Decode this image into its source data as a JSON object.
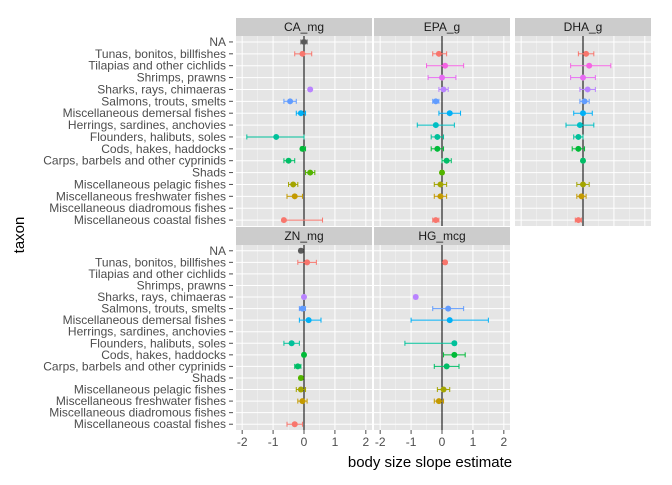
{
  "chart_data": {
    "type": "scatter",
    "subtype": "faceted point estimates with error bars",
    "xlabel": "body size slope estimate",
    "ylabel": "taxon",
    "xlim": [
      -2,
      2
    ],
    "x_ticks": [
      -2,
      -1,
      0,
      1,
      2
    ],
    "x_tick_labels": [
      "-2",
      "-1",
      "0",
      "1",
      "2"
    ],
    "reference_line_x": 0,
    "grid": true,
    "panel_background": "#e5e5e5",
    "strip_background": "#cccccc",
    "taxa": [
      {
        "name": "NA",
        "color": "#595959"
      },
      {
        "name": "Tunas, bonitos, billfishes",
        "color": "#f8766d"
      },
      {
        "name": "Tilapias and other cichlids",
        "color": "#f564e3"
      },
      {
        "name": "Shrimps, prawns",
        "color": "#e76bf3"
      },
      {
        "name": "Sharks, rays, chimaeras",
        "color": "#b983ff"
      },
      {
        "name": "Salmons, trouts, smelts",
        "color": "#619cff"
      },
      {
        "name": "Miscellaneous demersal fishes",
        "color": "#00b0f6"
      },
      {
        "name": "Herrings, sardines, anchovies",
        "color": "#00bfc4"
      },
      {
        "name": "Flounders, halibuts, soles",
        "color": "#00c19a"
      },
      {
        "name": "Cods, hakes, haddocks",
        "color": "#00ba38"
      },
      {
        "name": "Carps, barbels and other cyprinids",
        "color": "#00be67"
      },
      {
        "name": "Shads",
        "color": "#53b400"
      },
      {
        "name": "Miscellaneous pelagic fishes",
        "color": "#a3a500"
      },
      {
        "name": "Miscellaneous freshwater fishes",
        "color": "#c49a00"
      },
      {
        "name": "Miscellaneous diadromous fishes",
        "color": "#d89000"
      },
      {
        "name": "Miscellaneous coastal fishes",
        "color": "#f8766d"
      }
    ],
    "facets": [
      {
        "name": "CA_mg",
        "points": [
          {
            "taxon": "NA",
            "x": 0.0,
            "lo": -0.1,
            "hi": 0.1
          },
          {
            "taxon": "Tunas, bonitos, billfishes",
            "x": -0.05,
            "lo": -0.3,
            "hi": 0.25
          },
          {
            "taxon": "Sharks, rays, chimaeras",
            "x": 0.2,
            "lo": 0.15,
            "hi": 0.25
          },
          {
            "taxon": "Salmons, trouts, smelts",
            "x": -0.45,
            "lo": -0.65,
            "hi": -0.25
          },
          {
            "taxon": "Miscellaneous demersal fishes",
            "x": -0.1,
            "lo": -0.25,
            "hi": 0.05
          },
          {
            "taxon": "Flounders, halibuts, soles",
            "x": -0.9,
            "lo": -1.85,
            "hi": 0.0
          },
          {
            "taxon": "Cods, hakes, haddocks",
            "x": -0.05,
            "lo": -0.1,
            "hi": 0.05
          },
          {
            "taxon": "Carps, barbels and other cyprinids",
            "x": -0.5,
            "lo": -0.65,
            "hi": -0.3
          },
          {
            "taxon": "Shads",
            "x": 0.2,
            "lo": 0.05,
            "hi": 0.35
          },
          {
            "taxon": "Miscellaneous pelagic fishes",
            "x": -0.35,
            "lo": -0.5,
            "hi": -0.2
          },
          {
            "taxon": "Miscellaneous freshwater fishes",
            "x": -0.3,
            "lo": -0.55,
            "hi": -0.05
          },
          {
            "taxon": "Miscellaneous coastal fishes",
            "x": -0.65,
            "lo": -0.7,
            "hi": 0.6
          }
        ]
      },
      {
        "name": "EPA_g",
        "points": [
          {
            "taxon": "Tunas, bonitos, billfishes",
            "x": -0.1,
            "lo": -0.3,
            "hi": 0.15
          },
          {
            "taxon": "Tilapias and other cichlids",
            "x": 0.1,
            "lo": -0.5,
            "hi": 0.7
          },
          {
            "taxon": "Shrimps, prawns",
            "x": 0.0,
            "lo": -0.45,
            "hi": 0.45
          },
          {
            "taxon": "Sharks, rays, chimaeras",
            "x": 0.05,
            "lo": -0.1,
            "hi": 0.2
          },
          {
            "taxon": "Salmons, trouts, smelts",
            "x": -0.2,
            "lo": -0.3,
            "hi": -0.1
          },
          {
            "taxon": "Miscellaneous demersal fishes",
            "x": 0.25,
            "lo": -0.1,
            "hi": 0.6
          },
          {
            "taxon": "Herrings, sardines, anchovies",
            "x": -0.2,
            "lo": -0.8,
            "hi": 0.4
          },
          {
            "taxon": "Flounders, halibuts, soles",
            "x": -0.15,
            "lo": -0.35,
            "hi": 0.05
          },
          {
            "taxon": "Cods, hakes, haddocks",
            "x": -0.15,
            "lo": -0.35,
            "hi": 0.05
          },
          {
            "taxon": "Carps, barbels and other cyprinids",
            "x": 0.15,
            "lo": 0.0,
            "hi": 0.3
          },
          {
            "taxon": "Shads",
            "x": 0.0,
            "lo": -0.05,
            "hi": 0.05
          },
          {
            "taxon": "Miscellaneous pelagic fishes",
            "x": -0.05,
            "lo": -0.25,
            "hi": 0.15
          },
          {
            "taxon": "Miscellaneous freshwater fishes",
            "x": -0.05,
            "lo": -0.25,
            "hi": 0.15
          },
          {
            "taxon": "Miscellaneous coastal fishes",
            "x": -0.2,
            "lo": -0.3,
            "hi": -0.1
          }
        ]
      },
      {
        "name": "DHA_g",
        "points": [
          {
            "taxon": "Tunas, bonitos, billfishes",
            "x": 0.1,
            "lo": -0.15,
            "hi": 0.35
          },
          {
            "taxon": "Tilapias and other cichlids",
            "x": 0.2,
            "lo": -0.4,
            "hi": 0.9
          },
          {
            "taxon": "Shrimps, prawns",
            "x": 0.0,
            "lo": -0.4,
            "hi": 0.4
          },
          {
            "taxon": "Sharks, rays, chimaeras",
            "x": 0.15,
            "lo": -0.1,
            "hi": 0.4
          },
          {
            "taxon": "Salmons, trouts, smelts",
            "x": 0.05,
            "lo": -0.1,
            "hi": 0.2
          },
          {
            "taxon": "Miscellaneous demersal fishes",
            "x": 0.0,
            "lo": -0.3,
            "hi": 0.3
          },
          {
            "taxon": "Herrings, sardines, anchovies",
            "x": -0.1,
            "lo": -0.55,
            "hi": 0.35
          },
          {
            "taxon": "Flounders, halibuts, soles",
            "x": -0.15,
            "lo": -0.3,
            "hi": 0.0
          },
          {
            "taxon": "Cods, hakes, haddocks",
            "x": -0.15,
            "lo": -0.35,
            "hi": 0.05
          },
          {
            "taxon": "Carps, barbels and other cyprinids",
            "x": 0.0,
            "lo": -0.05,
            "hi": 0.05
          },
          {
            "taxon": "Miscellaneous pelagic fishes",
            "x": 0.0,
            "lo": -0.2,
            "hi": 0.2
          },
          {
            "taxon": "Miscellaneous freshwater fishes",
            "x": -0.05,
            "lo": -0.2,
            "hi": 0.1
          },
          {
            "taxon": "Miscellaneous coastal fishes",
            "x": -0.15,
            "lo": -0.25,
            "hi": -0.05
          }
        ]
      },
      {
        "name": "ZN_mg",
        "points": [
          {
            "taxon": "NA",
            "x": -0.1,
            "lo": -0.15,
            "hi": -0.05
          },
          {
            "taxon": "Tunas, bonitos, billfishes",
            "x": 0.1,
            "lo": -0.2,
            "hi": 0.4
          },
          {
            "taxon": "Sharks, rays, chimaeras",
            "x": 0.0,
            "lo": -0.05,
            "hi": 0.05
          },
          {
            "taxon": "Salmons, trouts, smelts",
            "x": -0.05,
            "lo": -0.15,
            "hi": 0.05
          },
          {
            "taxon": "Miscellaneous demersal fishes",
            "x": 0.15,
            "lo": -0.15,
            "hi": 0.55
          },
          {
            "taxon": "Flounders, halibuts, soles",
            "x": -0.4,
            "lo": -0.65,
            "hi": -0.15
          },
          {
            "taxon": "Cods, hakes, haddocks",
            "x": 0.0,
            "lo": -0.05,
            "hi": 0.05
          },
          {
            "taxon": "Carps, barbels and other cyprinids",
            "x": -0.2,
            "lo": -0.3,
            "hi": -0.1
          },
          {
            "taxon": "Shads",
            "x": -0.1,
            "lo": -0.15,
            "hi": -0.05
          },
          {
            "taxon": "Miscellaneous pelagic fishes",
            "x": -0.1,
            "lo": -0.25,
            "hi": 0.05
          },
          {
            "taxon": "Miscellaneous freshwater fishes",
            "x": -0.05,
            "lo": -0.2,
            "hi": 0.1
          },
          {
            "taxon": "Miscellaneous coastal fishes",
            "x": -0.3,
            "lo": -0.55,
            "hi": -0.05
          }
        ]
      },
      {
        "name": "HG_mcg",
        "points": [
          {
            "taxon": "Tunas, bonitos, billfishes",
            "x": 0.1,
            "lo": 0.05,
            "hi": 0.15
          },
          {
            "taxon": "Sharks, rays, chimaeras",
            "x": -0.85,
            "lo": -0.9,
            "hi": -0.8
          },
          {
            "taxon": "Salmons, trouts, smelts",
            "x": 0.2,
            "lo": -0.3,
            "hi": 0.7
          },
          {
            "taxon": "Miscellaneous demersal fishes",
            "x": 0.25,
            "lo": -1.0,
            "hi": 1.5
          },
          {
            "taxon": "Flounders, halibuts, soles",
            "x": 0.4,
            "lo": -1.2,
            "hi": 0.45
          },
          {
            "taxon": "Cods, hakes, haddocks",
            "x": 0.4,
            "lo": 0.05,
            "hi": 0.75
          },
          {
            "taxon": "Carps, barbels and other cyprinids",
            "x": 0.15,
            "lo": -0.25,
            "hi": 0.55
          },
          {
            "taxon": "Miscellaneous pelagic fishes",
            "x": 0.05,
            "lo": -0.15,
            "hi": 0.25
          },
          {
            "taxon": "Miscellaneous freshwater fishes",
            "x": -0.1,
            "lo": -0.25,
            "hi": 0.05
          }
        ]
      }
    ]
  }
}
